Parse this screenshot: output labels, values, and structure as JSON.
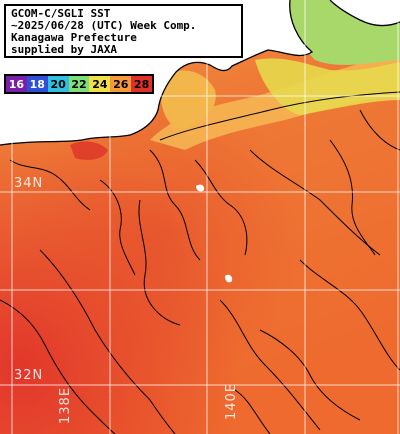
{
  "title_lines": [
    "GCOM-C/SGLI SST",
    "~2025/06/28 (UTC) Week Comp.",
    "Kanagawa Prefecture",
    "supplied by JAXA"
  ],
  "legend": {
    "values": [
      "16",
      "18",
      "20",
      "22",
      "24",
      "26",
      "28"
    ],
    "colors": [
      "#7a1fa8",
      "#2f4fd6",
      "#2fc0e0",
      "#7ee07a",
      "#f0e04a",
      "#f59a3a",
      "#e0302a"
    ],
    "text_colors": [
      "#ffffff",
      "#ffffff",
      "#000000",
      "#000000",
      "#000000",
      "#000000",
      "#000000"
    ]
  },
  "grid_labels": {
    "lat_34": "34N",
    "lat_32": "32N",
    "lon_138": "138E",
    "lon_140": "140E"
  },
  "colors": {
    "land": "#ffffff",
    "coastline": "#000000",
    "gridline": "#ffffff",
    "sea_warm": "#ee6a2e",
    "sea_warmer": "#e4452a",
    "sea_cool": "#f39a45",
    "sea_coastal": "#f8c850"
  }
}
